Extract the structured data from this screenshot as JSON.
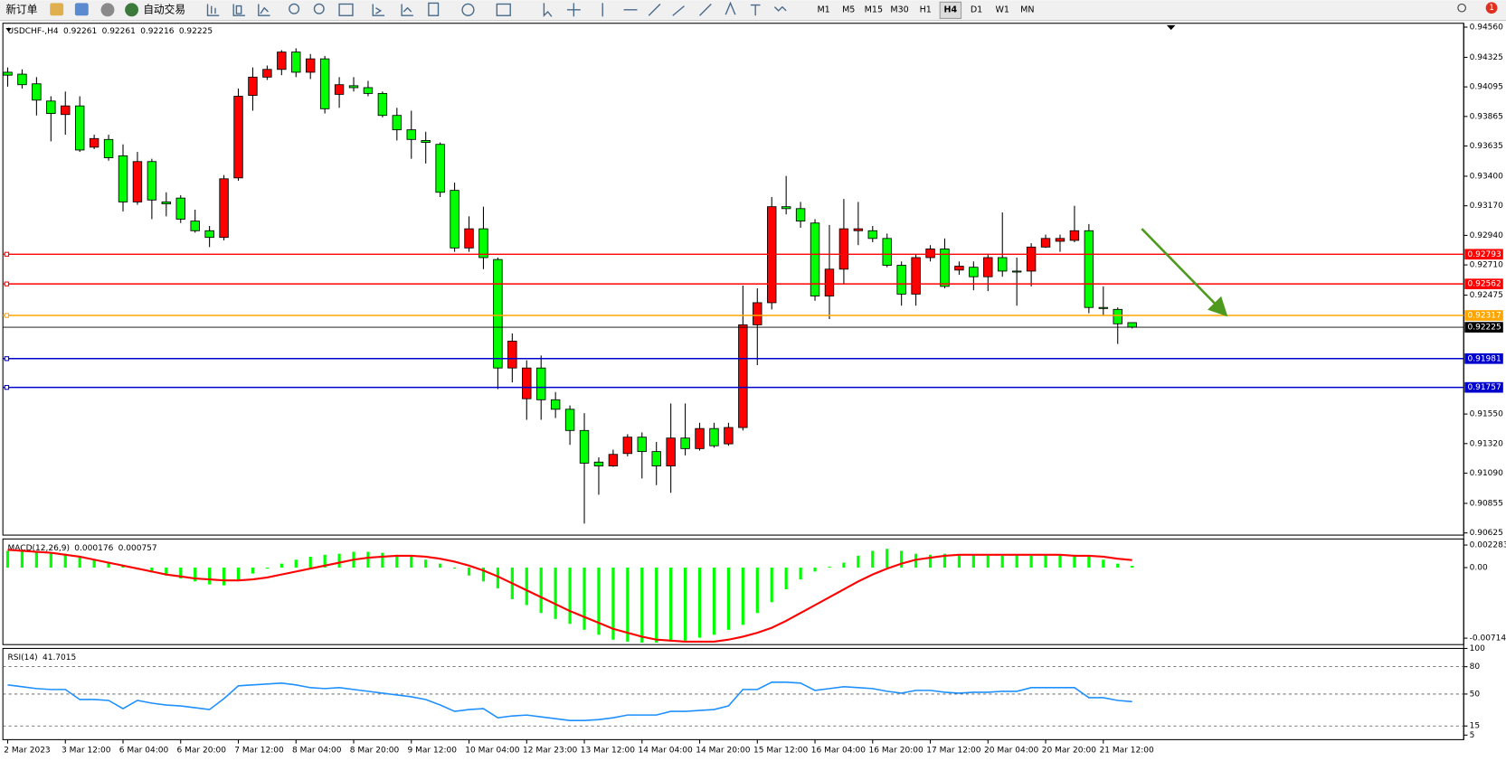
{
  "toolbar": {
    "buttons": [
      "新订单",
      "自动交易"
    ],
    "timeframes": [
      "M1",
      "M5",
      "M15",
      "M30",
      "H1",
      "H4",
      "D1",
      "W1",
      "MN"
    ],
    "active_timeframe": 5,
    "notifications": 1
  },
  "chart_data": [
    {
      "type": "candlestick",
      "title": "USDCHF-,H4",
      "categories": [
        "2 Mar 2023",
        null,
        null,
        null,
        "3 Mar 12:00",
        null,
        null,
        null,
        "6 Mar 04:00",
        null,
        null,
        null,
        "6 Mar 20:00",
        null,
        null,
        null,
        "7 Mar 12:00",
        null,
        null,
        null,
        "8 Mar 04:00",
        null,
        null,
        null,
        "8 Mar 20:00",
        null,
        null,
        null,
        "9 Mar 12:00",
        null,
        null,
        null,
        "10 Mar 04:00",
        null,
        null,
        null,
        "12 Mar 23:00",
        null,
        null,
        null,
        "13 Mar 12:00",
        null,
        null,
        null,
        "14 Mar 04:00",
        null,
        null,
        null,
        "14 Mar 20:00",
        null,
        null,
        null,
        "15 Mar 12:00",
        null,
        null,
        null,
        "16 Mar 04:00",
        null,
        null,
        null,
        "16 Mar 20:00",
        null,
        null,
        null,
        "17 Mar 12:00",
        null,
        null,
        null,
        "20 Mar 04:00",
        null,
        null,
        null,
        "20 Mar 20:00",
        null,
        null,
        null,
        "21 Mar 12:00",
        null,
        null
      ],
      "open": [
        0.94209,
        0.94194,
        0.94119,
        0.93985,
        0.9388,
        0.93947,
        0.93626,
        0.93686,
        0.93559,
        0.932,
        0.93514,
        0.932,
        0.9323,
        0.93051,
        0.92976,
        0.92924,
        0.93387,
        0.94029,
        0.94171,
        0.94231,
        0.94366,
        0.94209,
        0.94313,
        0.94037,
        0.94104,
        0.94089,
        0.94044,
        0.93873,
        0.93761,
        0.93678,
        0.93648,
        0.9329,
        0.92842,
        0.92991,
        0.92752,
        0.91908,
        0.91669,
        0.91908,
        0.91661,
        0.91587,
        0.91422,
        0.91176,
        0.91146,
        0.91243,
        0.9137,
        0.91258,
        0.91146,
        0.91363,
        0.91281,
        0.91437,
        0.91318,
        0.91445,
        0.92244,
        0.92416,
        0.93163,
        0.93148,
        0.93036,
        0.92468,
        0.92677,
        0.92976,
        0.92976,
        0.92916,
        0.92707,
        0.92483,
        0.92767,
        0.92834,
        0.9267,
        0.92692,
        0.92618,
        0.92767,
        0.92662,
        0.92662,
        0.92849,
        0.92894,
        0.92901,
        0.92976,
        0.92379,
        0.92364,
        0.92261
      ],
      "high": [
        0.94246,
        0.94231,
        0.94171,
        0.94022,
        0.94059,
        0.94022,
        0.93723,
        0.93723,
        0.93648,
        0.93589,
        0.93536,
        0.93275,
        0.93253,
        0.9314,
        0.93013,
        0.93409,
        0.94082,
        0.94246,
        0.94261,
        0.94381,
        0.94395,
        0.94351,
        0.94336,
        0.94171,
        0.94171,
        0.94142,
        0.94059,
        0.93932,
        0.9391,
        0.93746,
        0.93663,
        0.9335,
        0.93088,
        0.93163,
        0.92767,
        0.92177,
        0.91968,
        0.92005,
        0.91721,
        0.91617,
        0.91557,
        0.91213,
        0.91273,
        0.91393,
        0.91407,
        0.91333,
        0.91632,
        0.91632,
        0.91482,
        0.91482,
        0.91482,
        0.9255,
        0.92528,
        0.93238,
        0.93402,
        0.932,
        0.93066,
        0.93021,
        0.93223,
        0.932,
        0.93013,
        0.92954,
        0.92737,
        0.92789,
        0.92864,
        0.92916,
        0.92737,
        0.92737,
        0.92797,
        0.93118,
        0.92767,
        0.92879,
        0.92946,
        0.92946,
        0.9317,
        0.93028,
        0.92543,
        0.92379,
        0.92261
      ],
      "low": [
        0.94097,
        0.94082,
        0.93873,
        0.93671,
        0.93723,
        0.93589,
        0.93611,
        0.93521,
        0.93126,
        0.93178,
        0.93066,
        0.93088,
        0.93036,
        0.92961,
        0.92849,
        0.92901,
        0.93365,
        0.9391,
        0.94149,
        0.94186,
        0.94171,
        0.94156,
        0.93888,
        0.93932,
        0.94059,
        0.94022,
        0.93858,
        0.93678,
        0.93536,
        0.93499,
        0.93238,
        0.92812,
        0.92812,
        0.92677,
        0.91744,
        0.91796,
        0.91505,
        0.91505,
        0.91519,
        0.9131,
        0.90698,
        0.90922,
        0.91139,
        0.91221,
        0.91049,
        0.90997,
        0.90937,
        0.91228,
        0.91266,
        0.91288,
        0.91303,
        0.91422,
        0.9193,
        0.92364,
        0.93103,
        0.92999,
        0.92431,
        0.92289,
        0.92565,
        0.92864,
        0.92887,
        0.92692,
        0.92393,
        0.92393,
        0.92737,
        0.92528,
        0.92633,
        0.92513,
        0.92506,
        0.92618,
        0.92393,
        0.92543,
        0.92842,
        0.92812,
        0.92887,
        0.92334,
        0.92319,
        0.92095,
        0.92216
      ],
      "close": [
        0.94186,
        0.94112,
        0.93992,
        0.93888,
        0.93947,
        0.93604,
        0.93693,
        0.93544,
        0.932,
        0.93514,
        0.93215,
        0.93185,
        0.93066,
        0.92976,
        0.92924,
        0.9338,
        0.94022,
        0.94171,
        0.94231,
        0.94366,
        0.94209,
        0.94313,
        0.93925,
        0.94112,
        0.94089,
        0.94044,
        0.93873,
        0.93761,
        0.93686,
        0.93663,
        0.93275,
        0.92842,
        0.92991,
        0.92767,
        0.91908,
        0.92117,
        0.91908,
        0.91661,
        0.91587,
        0.91422,
        0.91168,
        0.91146,
        0.91236,
        0.9137,
        0.91258,
        0.91146,
        0.91363,
        0.91281,
        0.91437,
        0.91303,
        0.91445,
        0.92244,
        0.92416,
        0.93163,
        0.93148,
        0.93051,
        0.92468,
        0.92677,
        0.92991,
        0.92991,
        0.92916,
        0.92707,
        0.92483,
        0.92767,
        0.92834,
        0.92543,
        0.927,
        0.92618,
        0.92767,
        0.92662,
        0.92655,
        0.92849,
        0.92916,
        0.92916,
        0.92976,
        0.92379,
        0.92371,
        0.92252,
        0.92225
      ],
      "bull_color": "#ff0000",
      "bear_color": "#00ff00",
      "ylim": [
        0.90608,
        0.9459
      ],
      "yticks": [
        {
          "value": 0.9456,
          "label": "0.94560"
        },
        0.94325,
        0.94095,
        0.93865,
        0.93635,
        {
          "value": 0.934,
          "label": "0.93400"
        },
        {
          "value": 0.9317,
          "label": "0.93170"
        },
        {
          "value": 0.9294,
          "label": "0.92940"
        },
        {
          "value": 0.9271,
          "label": "0.92710"
        },
        0.92475,
        {
          "value": 0.9155,
          "label": "0.91550"
        },
        {
          "value": 0.9132,
          "label": "0.91320"
        },
        {
          "value": 0.9109,
          "label": "0.91090"
        },
        0.90855,
        0.90625
      ],
      "price_levels": [
        {
          "value": 0.92793,
          "color": "#ff0000"
        },
        {
          "value": 0.92562,
          "color": "#ff0000"
        },
        {
          "value": 0.92317,
          "color": "#ffa500"
        },
        {
          "value": 0.91981,
          "color": "#0000cd"
        },
        {
          "value": 0.91757,
          "color": "#0000cd"
        }
      ]
    },
    {
      "type": "bar",
      "title": "MACD(12,26,9)",
      "series": [
        {
          "type": "bar",
          "color": "#00ff00",
          "values": [
            0.0017,
            0.0017,
            0.0016,
            0.0015,
            0.0014,
            0.0011,
            0.0008,
            0.0005,
            0.0002,
            -0.0002,
            -0.0005,
            -0.0008,
            -0.0011,
            -0.0014,
            -0.0017,
            -0.0018,
            -0.0012,
            -0.0006,
            -0.0001,
            0.0004,
            0.0008,
            0.0011,
            0.0013,
            0.0014,
            0.0016,
            0.0016,
            0.0015,
            0.0013,
            0.0011,
            0.0008,
            0.0004,
            -0.0001,
            -0.0008,
            -0.0014,
            -0.0021,
            -0.0032,
            -0.0038,
            -0.0046,
            -0.0052,
            -0.0057,
            -0.0063,
            -0.0068,
            -0.0073,
            -0.0075,
            -0.0076,
            -0.0076,
            -0.0075,
            -0.0074,
            -0.0071,
            -0.0068,
            -0.0063,
            -0.0058,
            -0.0046,
            -0.0035,
            -0.0022,
            -0.0012,
            -0.0004,
            0.0001,
            0.0005,
            0.0012,
            0.0017,
            0.0019,
            0.0017,
            0.0014,
            0.0013,
            0.0014,
            0.0012,
            0.0013,
            0.0012,
            0.0012,
            0.0013,
            0.0012,
            0.0013,
            0.0013,
            0.0013,
            0.0012,
            0.0008,
            0.0004,
            0.000176
          ]
        },
        {
          "type": "line",
          "color": "#ff0000",
          "values": [
            0.0018,
            0.0017,
            0.0016,
            0.0015,
            0.0013,
            0.0011,
            0.0008,
            0.0005,
            0.0002,
            -0.0001,
            -0.0004,
            -0.0007,
            -0.0009,
            -0.0011,
            -0.0012,
            -0.0013,
            -0.0013,
            -0.0012,
            -0.001,
            -0.0007,
            -0.0004,
            -0.0001,
            0.0002,
            0.0005,
            0.0008,
            0.001,
            0.0011,
            0.0012,
            0.0012,
            0.0011,
            0.0009,
            0.0006,
            0.0002,
            -0.0003,
            -0.0009,
            -0.0016,
            -0.0023,
            -0.003,
            -0.0037,
            -0.0044,
            -0.005,
            -0.0056,
            -0.0062,
            -0.0066,
            -0.007,
            -0.0073,
            -0.0074,
            -0.0075,
            -0.0075,
            -0.0075,
            -0.0073,
            -0.007,
            -0.0066,
            -0.0061,
            -0.0054,
            -0.0046,
            -0.0038,
            -0.003,
            -0.0022,
            -0.0014,
            -0.0007,
            -0.0001,
            0.0004,
            0.0008,
            0.001,
            0.0012,
            0.0013,
            0.0013,
            0.0013,
            0.0013,
            0.0013,
            0.0013,
            0.0013,
            0.0013,
            0.0012,
            0.0012,
            0.0011,
            0.0009,
            0.000757
          ]
        }
      ],
      "ylim": [
        -0.0078,
        0.0029
      ],
      "yticks": [
        0.002283,
        {
          "value": 0,
          "label": "0.00"
        },
        -0.007149
      ]
    },
    {
      "type": "line",
      "title": "RSI(14)",
      "series": [
        {
          "color": "#1e90ff",
          "values": [
            60,
            58,
            56,
            55,
            55,
            44,
            44,
            43,
            34,
            43,
            40,
            38,
            37,
            35,
            33,
            45,
            59,
            60,
            61,
            62,
            60,
            57,
            56,
            57,
            55,
            53,
            51,
            49,
            47,
            44,
            38,
            31,
            33,
            34,
            24,
            26,
            27,
            25,
            23,
            21,
            21,
            22,
            24,
            27,
            27,
            27,
            31,
            31,
            32,
            33,
            37,
            55,
            55,
            63,
            63,
            62,
            54,
            56,
            58,
            57,
            56,
            53,
            51,
            54,
            54,
            52,
            51,
            52,
            52,
            53,
            53,
            57,
            57,
            57,
            57,
            46,
            46,
            43,
            41.7015
          ]
        }
      ],
      "ylim": [
        0,
        100
      ],
      "yticks": [
        100,
        80,
        50,
        15,
        5
      ],
      "levels": [
        80,
        50,
        15
      ]
    }
  ]
}
